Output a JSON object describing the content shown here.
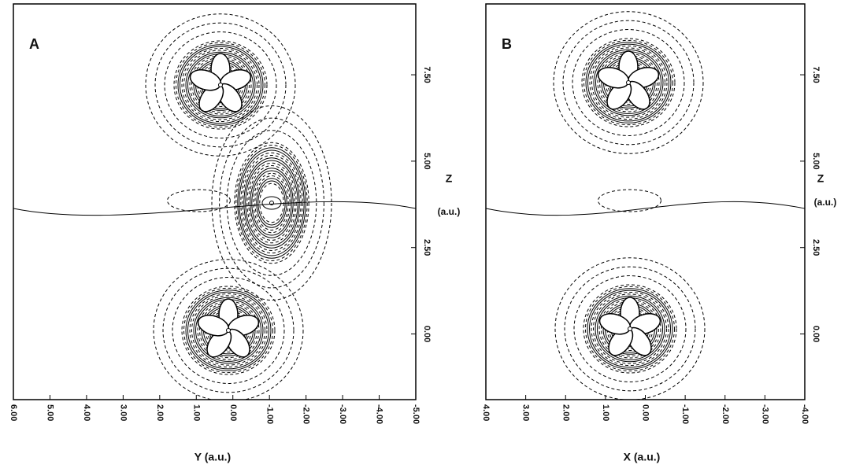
{
  "chart_data": [
    {
      "type": "contour",
      "panel": "A",
      "xlabel": "Y (a.u.)",
      "ylabel": "Z",
      "ylabel_unit": "(a.u.)",
      "xlim": [
        6,
        -5
      ],
      "ylim": [
        -1.9,
        9.55
      ],
      "xticks": [
        {
          "value": 6,
          "label": "6.00"
        },
        {
          "value": 5,
          "label": "5.00"
        },
        {
          "value": 4,
          "label": "4.00"
        },
        {
          "value": 3,
          "label": "3.00"
        },
        {
          "value": 2,
          "label": "2.00"
        },
        {
          "value": 1,
          "label": "1.00"
        },
        {
          "value": 0,
          "label": "0.00"
        },
        {
          "value": -1,
          "label": "-1.00"
        },
        {
          "value": -2,
          "label": "-2.00"
        },
        {
          "value": -3,
          "label": "-3.00"
        },
        {
          "value": -4,
          "label": "-4.00"
        },
        {
          "value": -5,
          "label": "-5.00"
        }
      ],
      "yticks": [
        {
          "value": 0,
          "label": "0.00"
        },
        {
          "value": 2.5,
          "label": "2.50"
        },
        {
          "value": 5,
          "label": "5.00"
        },
        {
          "value": 7.5,
          "label": "7.50"
        }
      ]
    },
    {
      "type": "contour",
      "panel": "B",
      "xlabel": "X (a.u.)",
      "ylabel": "Z",
      "ylabel_unit": "(a.u.)",
      "xlim": [
        4,
        -4
      ],
      "ylim": [
        -1.9,
        9.55
      ],
      "xticks": [
        {
          "value": 4,
          "label": "4.00"
        },
        {
          "value": 3,
          "label": "3.00"
        },
        {
          "value": 2,
          "label": "2.00"
        },
        {
          "value": 1,
          "label": "1.00"
        },
        {
          "value": 0,
          "label": "0.00"
        },
        {
          "value": -1,
          "label": "-1.00"
        },
        {
          "value": -2,
          "label": "-2.00"
        },
        {
          "value": -3,
          "label": "-3.00"
        },
        {
          "value": -4,
          "label": "-4.00"
        }
      ],
      "yticks": [
        {
          "value": 0,
          "label": "0.00"
        },
        {
          "value": 2.5,
          "label": "2.50"
        },
        {
          "value": 5,
          "label": "5.00"
        },
        {
          "value": 7.5,
          "label": "7.50"
        }
      ]
    }
  ]
}
